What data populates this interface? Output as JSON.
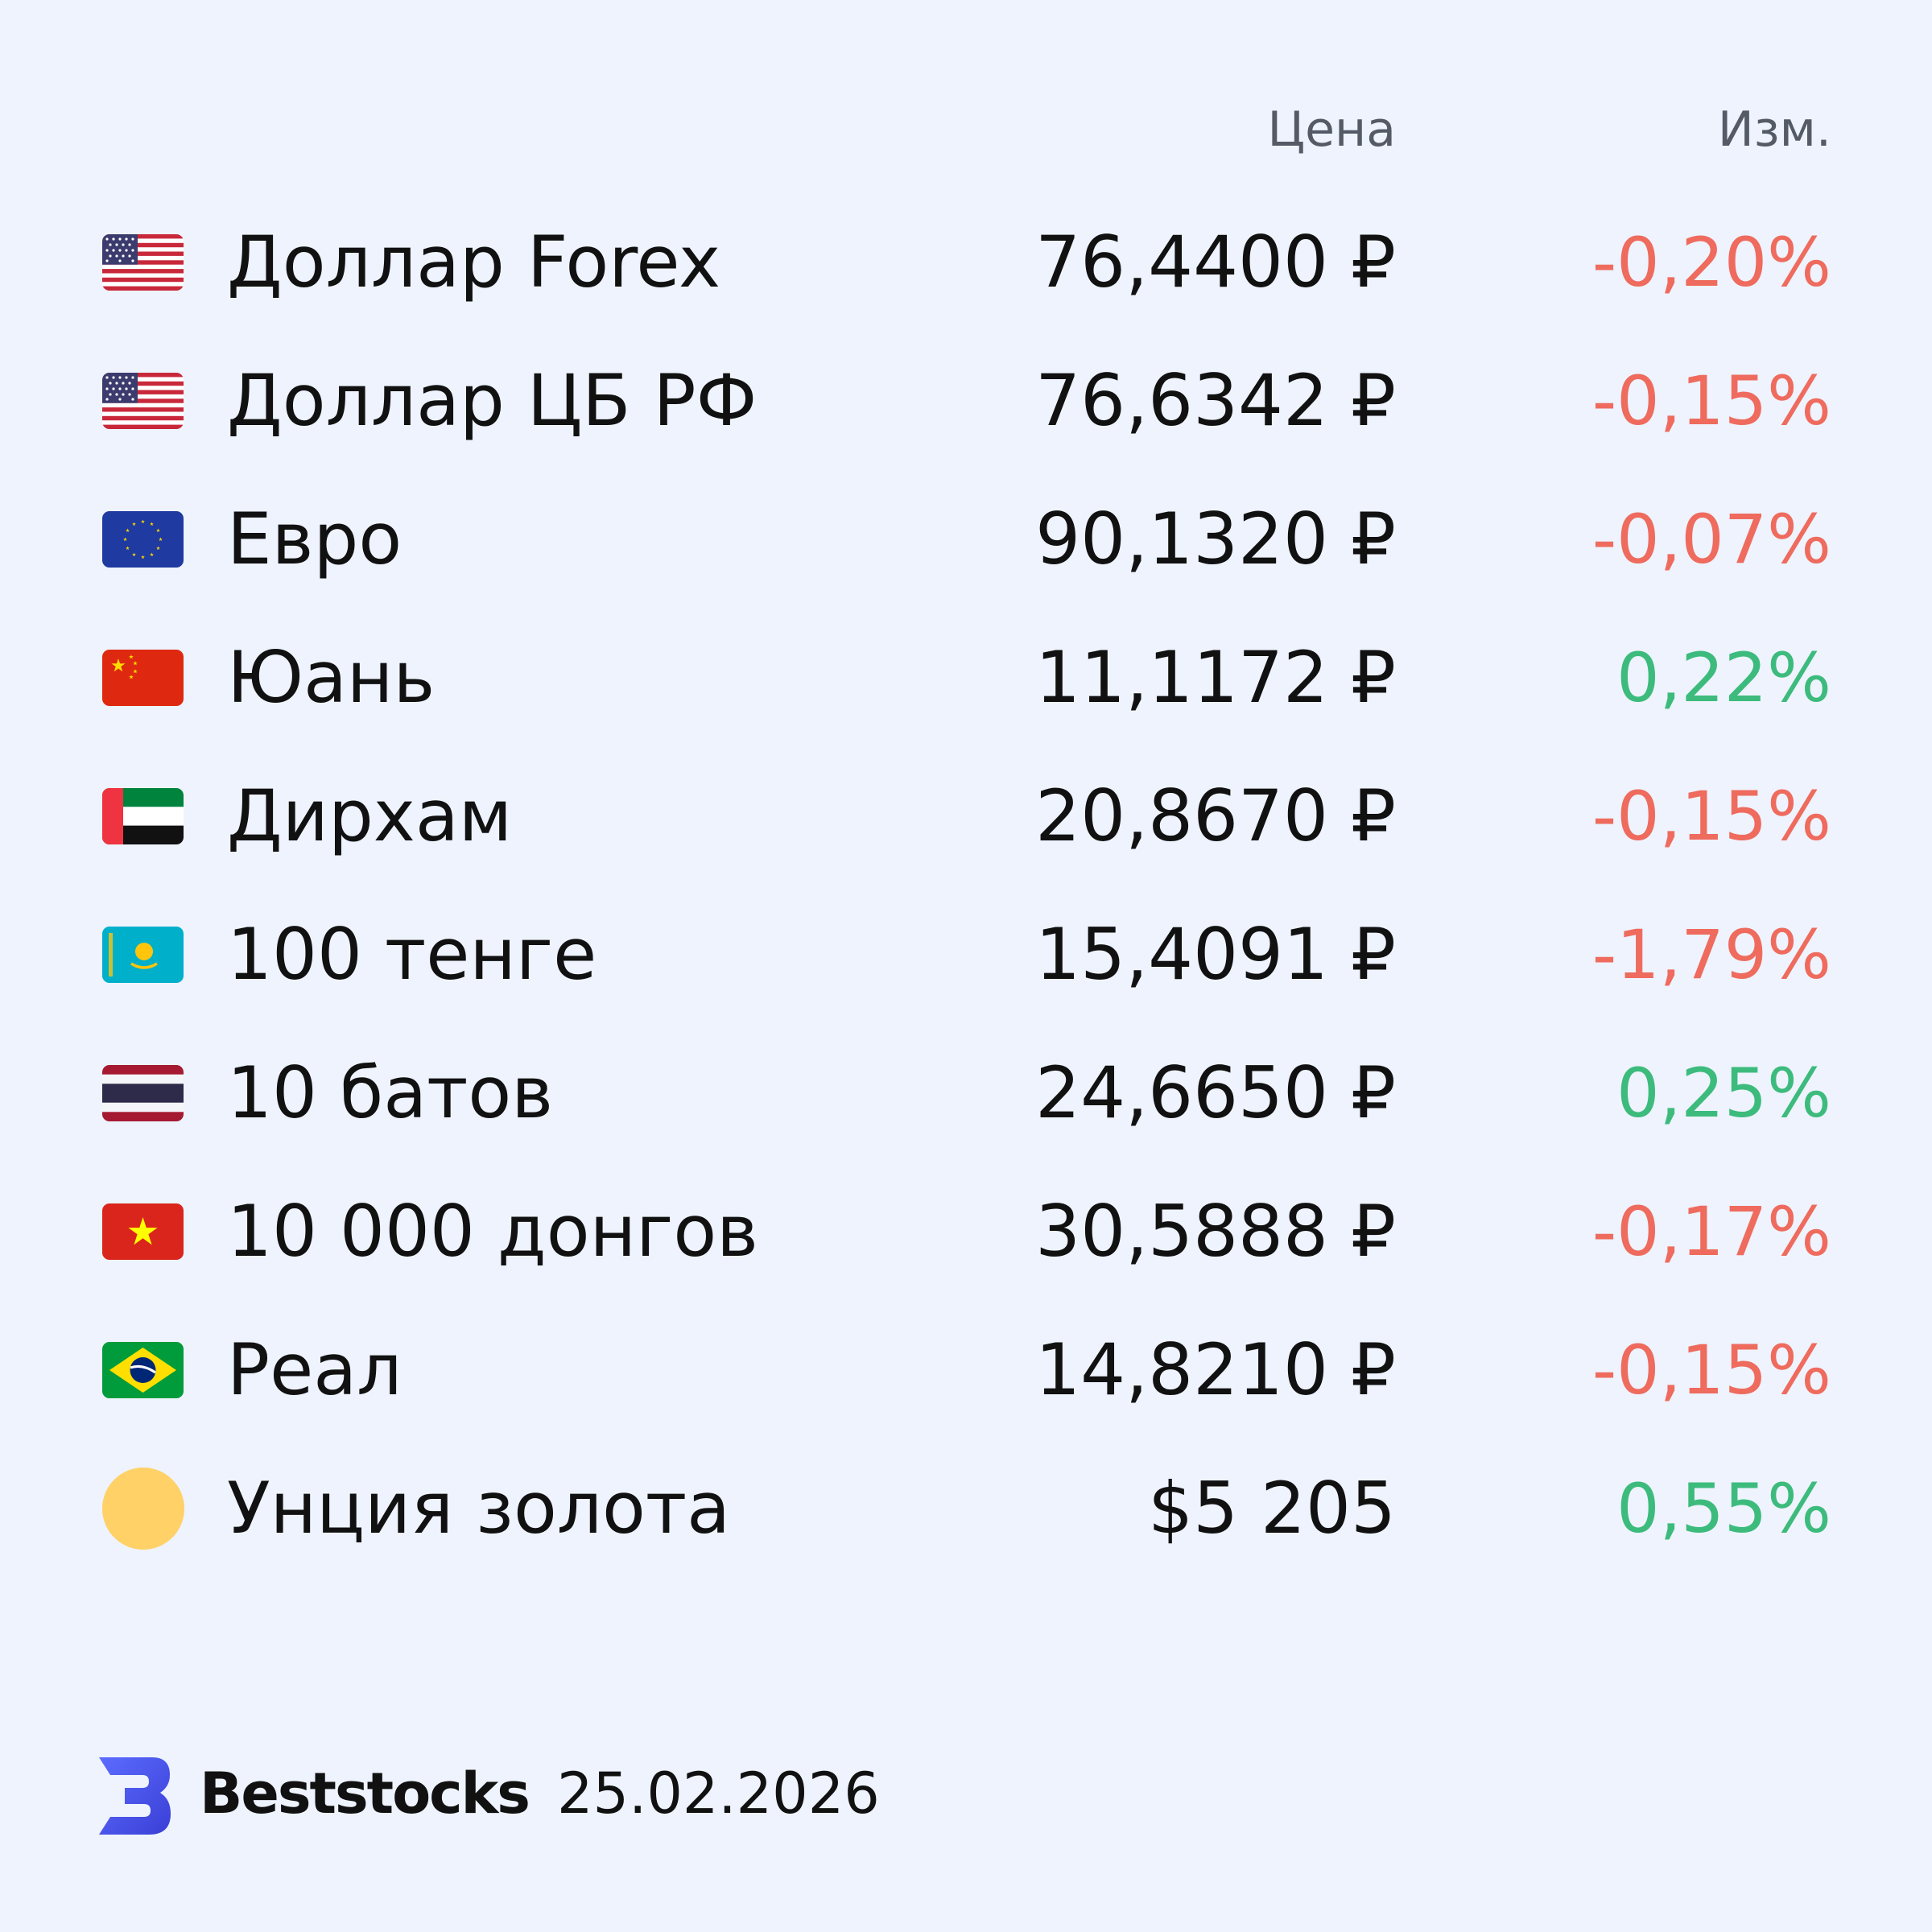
{
  "header": {
    "price": "Цена",
    "change": "Изм."
  },
  "rows": [
    {
      "name": "Доллар Forex",
      "price": "76,4400 ₽",
      "change": "-0,20%",
      "change_color": "#ee6b5e"
    },
    {
      "name": "Доллар ЦБ РФ",
      "price": "76,6342 ₽",
      "change": "-0,15%",
      "change_color": "#ee6b5e"
    },
    {
      "name": "Евро",
      "price": "90,1320 ₽",
      "change": "-0,07%",
      "change_color": "#ee6b5e"
    },
    {
      "name": "Юань",
      "price": "11,1172 ₽",
      "change": "0,22%",
      "change_color": "#3dbb7d"
    },
    {
      "name": "Дирхам",
      "price": "20,8670 ₽",
      "change": "-0,15%",
      "change_color": "#ee6b5e"
    },
    {
      "name": "100 тенге",
      "price": "15,4091 ₽",
      "change": "-1,79%",
      "change_color": "#ee6b5e"
    },
    {
      "name": "10 батов",
      "price": "24,6650 ₽",
      "change": "0,25%",
      "change_color": "#3dbb7d"
    },
    {
      "name": "10 000 донгов",
      "price": "30,5888 ₽",
      "change": "-0,17%",
      "change_color": "#ee6b5e"
    },
    {
      "name": "Реал",
      "price": "14,8210 ₽",
      "change": "-0,15%",
      "change_color": "#ee6b5e"
    },
    {
      "name": "Унция золота",
      "price": "$5 205",
      "change": "0,55%",
      "change_color": "#3dbb7d"
    }
  ],
  "footer": {
    "brand": "Beststocks",
    "date": "25.02.2026"
  }
}
